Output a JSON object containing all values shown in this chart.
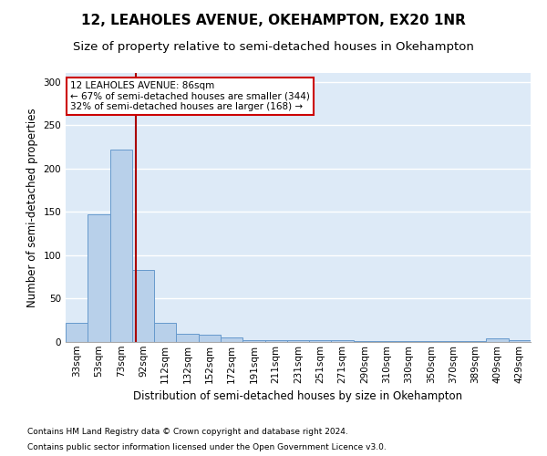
{
  "title": "12, LEAHOLES AVENUE, OKEHAMPTON, EX20 1NR",
  "subtitle": "Size of property relative to semi-detached houses in Okehampton",
  "xlabel": "Distribution of semi-detached houses by size in Okehampton",
  "ylabel": "Number of semi-detached properties",
  "footnote1": "Contains HM Land Registry data © Crown copyright and database right 2024.",
  "footnote2": "Contains public sector information licensed under the Open Government Licence v3.0.",
  "annotation_line1": "12 LEAHOLES AVENUE: 86sqm",
  "annotation_line2": "← 67% of semi-detached houses are smaller (344)",
  "annotation_line3": "32% of semi-detached houses are larger (168) →",
  "categories": [
    "33sqm",
    "53sqm",
    "73sqm",
    "92sqm",
    "112sqm",
    "132sqm",
    "152sqm",
    "172sqm",
    "191sqm",
    "211sqm",
    "231sqm",
    "251sqm",
    "271sqm",
    "290sqm",
    "310sqm",
    "330sqm",
    "350sqm",
    "370sqm",
    "389sqm",
    "409sqm",
    "429sqm"
  ],
  "bar_values": [
    22,
    147,
    222,
    83,
    22,
    9,
    8,
    5,
    2,
    2,
    2,
    2,
    2,
    1,
    1,
    1,
    1,
    1,
    1,
    4,
    2
  ],
  "bar_color": "#b8d0ea",
  "bar_edgecolor": "#6699cc",
  "bar_linewidth": 0.7,
  "redline_x": 2.65,
  "redline_color": "#aa0000",
  "ylim": [
    0,
    310
  ],
  "yticks": [
    0,
    50,
    100,
    150,
    200,
    250,
    300
  ],
  "annotation_box_facecolor": "#ffffff",
  "annotation_box_edgecolor": "#cc0000",
  "background_color": "#ddeaf7",
  "grid_color": "#ffffff",
  "title_fontsize": 11,
  "subtitle_fontsize": 9.5,
  "axis_label_fontsize": 8.5,
  "tick_fontsize": 7.5,
  "annotation_fontsize": 7.5,
  "footnote_fontsize": 6.5
}
